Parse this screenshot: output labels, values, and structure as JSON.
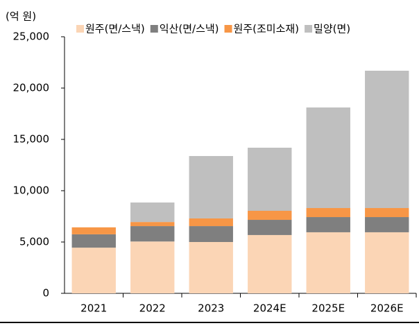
{
  "chart_data": {
    "type": "stacked_bar",
    "unit_label": "(억 원)",
    "categories": [
      "2021",
      "2022",
      "2023",
      "2024E",
      "2025E",
      "2026E"
    ],
    "series": [
      {
        "name": "원주(면/스낵)",
        "color": "#fbd5b5",
        "values": [
          4450,
          5050,
          5000,
          5680,
          5950,
          5950
        ]
      },
      {
        "name": "익산(면/스낵)",
        "color": "#7f7f7f",
        "values": [
          1300,
          1500,
          1550,
          1480,
          1480,
          1480
        ]
      },
      {
        "name": "원주(조미소재)",
        "color": "#f79646",
        "values": [
          680,
          400,
          750,
          880,
          880,
          880
        ]
      },
      {
        "name": "밀양(면)",
        "color": "#bfbfbf",
        "values": [
          0,
          1900,
          6080,
          6150,
          9800,
          13380
        ]
      }
    ],
    "ylim": [
      0,
      25000
    ],
    "yticks": [
      0,
      {
        "value": 5000,
        "label": "5,000"
      },
      {
        "value": 10000,
        "label": "10,000"
      },
      {
        "value": 15000,
        "label": "15,000"
      },
      {
        "value": 20000,
        "label": "20,000"
      },
      {
        "value": 25000,
        "label": "25,000"
      }
    ],
    "grid": false
  }
}
